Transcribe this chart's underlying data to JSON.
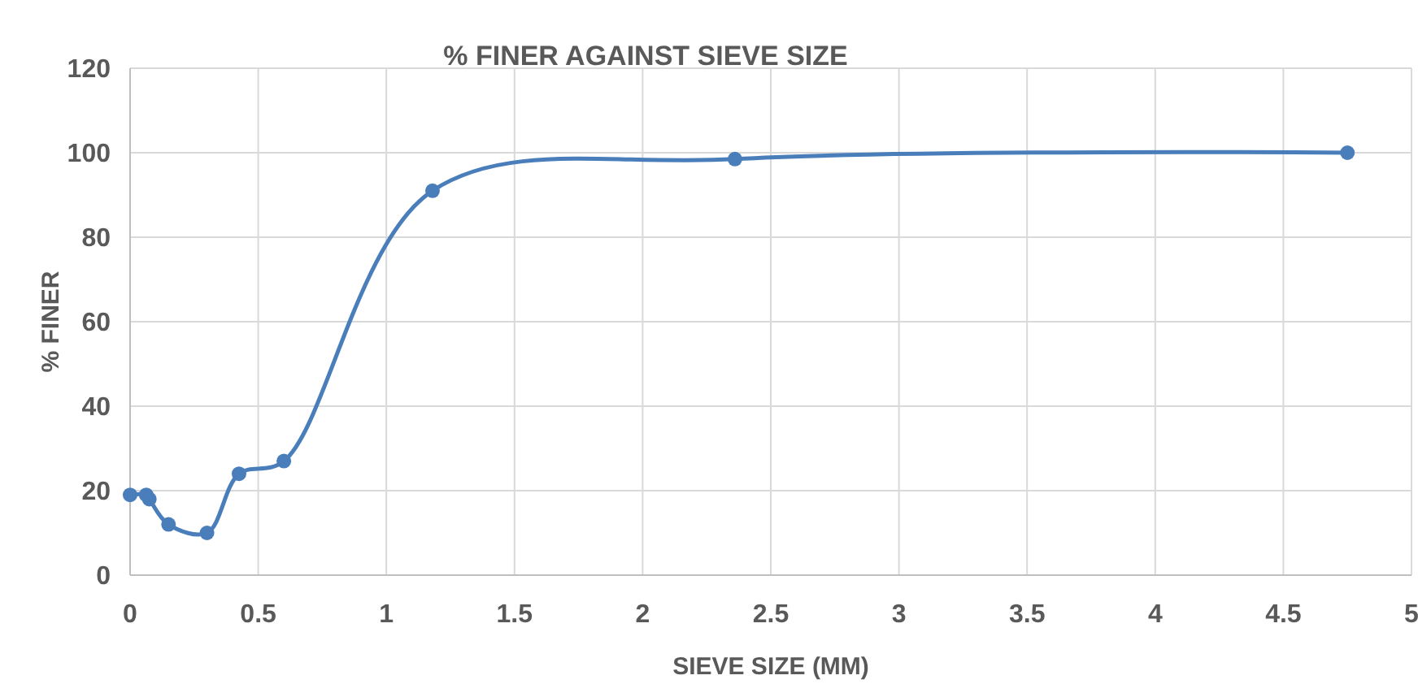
{
  "chart_data": {
    "type": "line",
    "title": "% FINER AGAINST SIEVE SIZE",
    "xlabel": "SIEVE SIZE (MM)",
    "ylabel": "% FINER",
    "series": [
      {
        "color": "#4a7ebb",
        "x": [
          0,
          0.063,
          0.075,
          0.15,
          0.3,
          0.425,
          0.6,
          1.18,
          2.36,
          4.75
        ],
        "values": [
          19,
          19,
          18,
          12,
          10,
          24,
          27,
          91,
          98.5,
          100
        ]
      }
    ],
    "xlim": [
      0,
      5
    ],
    "xticks": [
      0,
      0.5,
      1,
      1.5,
      2,
      2.5,
      3,
      3.5,
      4,
      4.5,
      5
    ],
    "ylim": [
      0,
      120
    ],
    "yticks": [
      0,
      20,
      40,
      60,
      80,
      100,
      120
    ],
    "grid": true,
    "marker": "circle",
    "line_style": "solid"
  }
}
